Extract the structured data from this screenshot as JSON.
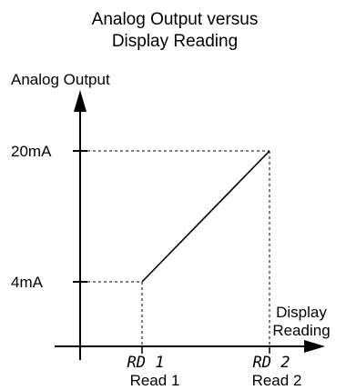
{
  "title": {
    "line1": "Analog Output versus",
    "line2": "Display Reading"
  },
  "axes": {
    "y_label": "Analog Output",
    "x_label_line1": "Display",
    "x_label_line2": "Reading"
  },
  "levels": {
    "high": "20mA",
    "low": "4mA"
  },
  "points": {
    "rd1_display": "RD 1",
    "rd1_label": "Read 1",
    "rd2_display": "RD 2",
    "rd2_label": "Read 2"
  },
  "colors": {
    "ink": "#000000",
    "background": "#ffffff"
  }
}
